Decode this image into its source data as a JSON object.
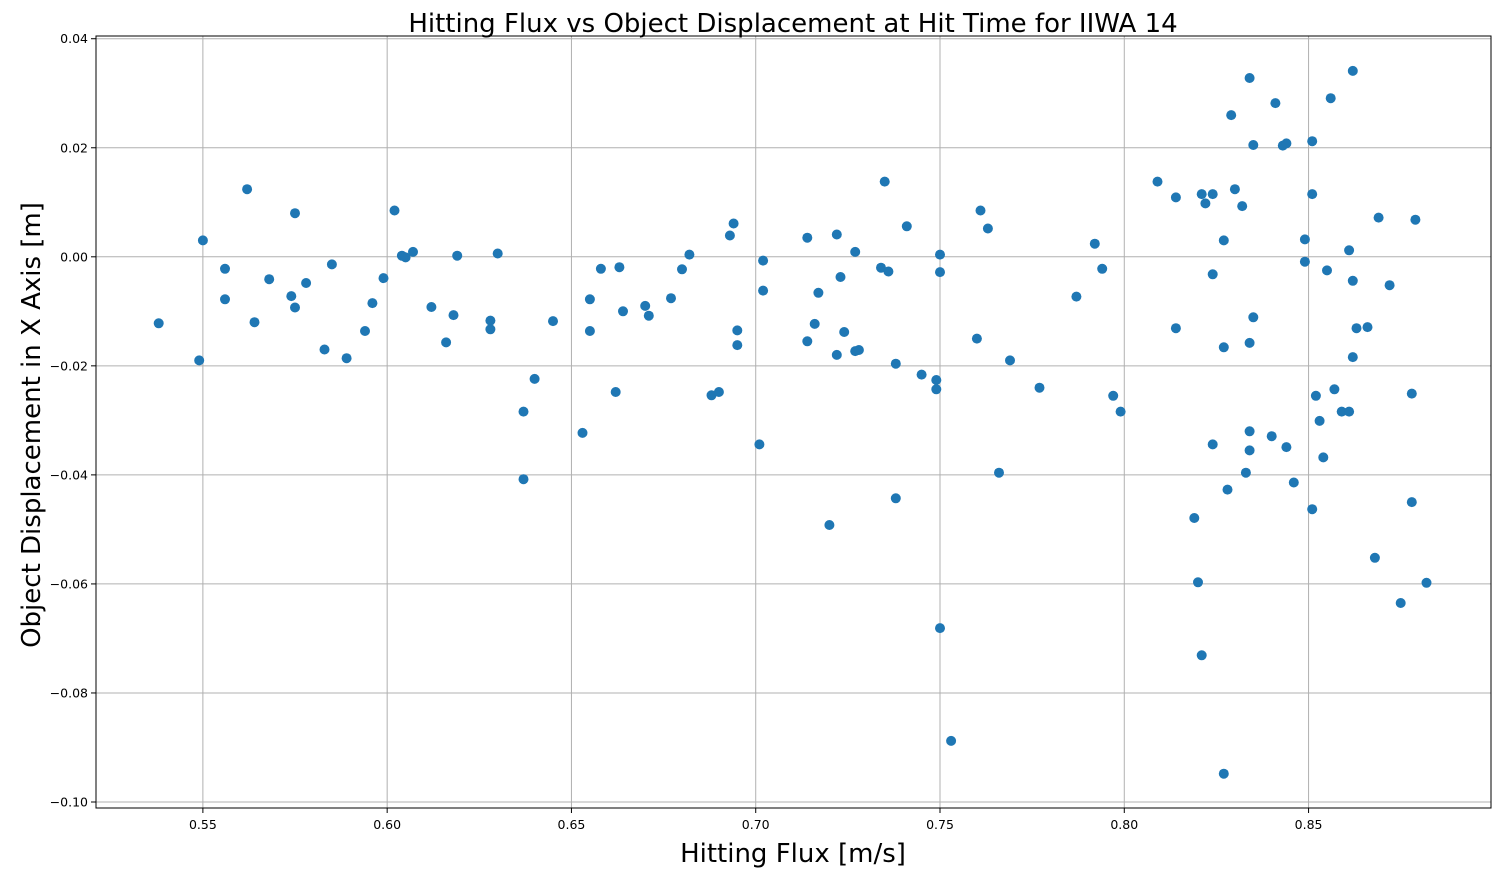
{
  "chart_data": {
    "type": "scatter",
    "title": "Hitting Flux vs Object Displacement at Hit Time for IIWA 14",
    "xlabel": "Hitting Flux [m/s]",
    "ylabel": "Object Displacement in X Axis [m]",
    "xlim": [
      0.521,
      0.8995
    ],
    "ylim": [
      -0.1011,
      0.0405
    ],
    "xticks": [
      0.55,
      0.6,
      0.65,
      0.7,
      0.75,
      0.8,
      0.85
    ],
    "xtick_labels": [
      "0.55",
      "0.60",
      "0.65",
      "0.70",
      "0.75",
      "0.80",
      "0.85"
    ],
    "yticks": [
      -0.1,
      -0.08,
      -0.06,
      -0.04,
      -0.02,
      0.0,
      0.02,
      0.04
    ],
    "ytick_labels": [
      "−0.10",
      "−0.08",
      "−0.06",
      "−0.04",
      "−0.02",
      "0.00",
      "0.02",
      "0.04"
    ],
    "grid": true,
    "marker_color": "#1f77b4",
    "points": [
      [
        0.538,
        -0.0122
      ],
      [
        0.55,
        0.003
      ],
      [
        0.549,
        -0.019
      ],
      [
        0.556,
        -0.0022
      ],
      [
        0.556,
        -0.0078
      ],
      [
        0.562,
        0.0124
      ],
      [
        0.564,
        -0.012
      ],
      [
        0.568,
        -0.0041
      ],
      [
        0.574,
        -0.0072
      ],
      [
        0.575,
        0.008
      ],
      [
        0.575,
        -0.0093
      ],
      [
        0.578,
        -0.0048
      ],
      [
        0.583,
        -0.017
      ],
      [
        0.585,
        -0.0014
      ],
      [
        0.589,
        -0.0186
      ],
      [
        0.594,
        -0.0136
      ],
      [
        0.596,
        -0.0085
      ],
      [
        0.599,
        -0.0039
      ],
      [
        0.602,
        0.0085
      ],
      [
        0.604,
        0.0002
      ],
      [
        0.605,
        -0.0001
      ],
      [
        0.607,
        0.0009
      ],
      [
        0.612,
        -0.0092
      ],
      [
        0.616,
        -0.0157
      ],
      [
        0.618,
        -0.0107
      ],
      [
        0.619,
        0.0002
      ],
      [
        0.628,
        -0.0117
      ],
      [
        0.628,
        -0.0133
      ],
      [
        0.63,
        0.0006
      ],
      [
        0.637,
        -0.0284
      ],
      [
        0.637,
        -0.0408
      ],
      [
        0.64,
        -0.0224
      ],
      [
        0.645,
        -0.0118
      ],
      [
        0.653,
        -0.0323
      ],
      [
        0.655,
        -0.0078
      ],
      [
        0.655,
        -0.0136
      ],
      [
        0.658,
        -0.0022
      ],
      [
        0.662,
        -0.0248
      ],
      [
        0.663,
        -0.0019
      ],
      [
        0.664,
        -0.01
      ],
      [
        0.67,
        -0.009
      ],
      [
        0.671,
        -0.0108
      ],
      [
        0.677,
        -0.0076
      ],
      [
        0.68,
        -0.0023
      ],
      [
        0.682,
        0.0004
      ],
      [
        0.688,
        -0.0254
      ],
      [
        0.69,
        -0.0248
      ],
      [
        0.693,
        0.0039
      ],
      [
        0.694,
        0.0061
      ],
      [
        0.695,
        -0.0135
      ],
      [
        0.695,
        -0.0162
      ],
      [
        0.701,
        -0.0344
      ],
      [
        0.702,
        -0.0007
      ],
      [
        0.702,
        -0.0062
      ],
      [
        0.714,
        0.0035
      ],
      [
        0.714,
        -0.0155
      ],
      [
        0.716,
        -0.0123
      ],
      [
        0.717,
        -0.0066
      ],
      [
        0.72,
        -0.0492
      ],
      [
        0.722,
        0.0041
      ],
      [
        0.722,
        -0.018
      ],
      [
        0.723,
        -0.0037
      ],
      [
        0.724,
        -0.0138
      ],
      [
        0.727,
        0.0009
      ],
      [
        0.727,
        -0.0173
      ],
      [
        0.728,
        -0.0171
      ],
      [
        0.734,
        -0.002
      ],
      [
        0.735,
        0.0138
      ],
      [
        0.736,
        -0.0027
      ],
      [
        0.738,
        -0.0196
      ],
      [
        0.738,
        -0.0443
      ],
      [
        0.741,
        0.0056
      ],
      [
        0.745,
        -0.0216
      ],
      [
        0.749,
        -0.0226
      ],
      [
        0.749,
        -0.0243
      ],
      [
        0.75,
        0.0004
      ],
      [
        0.75,
        -0.0681
      ],
      [
        0.75,
        -0.0028
      ],
      [
        0.753,
        -0.0888
      ],
      [
        0.76,
        -0.015
      ],
      [
        0.761,
        0.0085
      ],
      [
        0.763,
        0.0052
      ],
      [
        0.766,
        -0.0396
      ],
      [
        0.769,
        -0.019
      ],
      [
        0.777,
        -0.024
      ],
      [
        0.787,
        -0.0073
      ],
      [
        0.792,
        0.0024
      ],
      [
        0.794,
        -0.0022
      ],
      [
        0.797,
        -0.0255
      ],
      [
        0.799,
        -0.0284
      ],
      [
        0.809,
        0.0138
      ],
      [
        0.814,
        0.0109
      ],
      [
        0.814,
        -0.0131
      ],
      [
        0.819,
        -0.0479
      ],
      [
        0.82,
        -0.0597
      ],
      [
        0.821,
        0.0115
      ],
      [
        0.821,
        -0.0731
      ],
      [
        0.822,
        0.0098
      ],
      [
        0.824,
        0.0115
      ],
      [
        0.824,
        -0.0032
      ],
      [
        0.824,
        -0.0344
      ],
      [
        0.827,
        -0.0948
      ],
      [
        0.827,
        0.003
      ],
      [
        0.827,
        -0.0166
      ],
      [
        0.828,
        -0.0427
      ],
      [
        0.829,
        0.026
      ],
      [
        0.83,
        0.0124
      ],
      [
        0.832,
        0.0093
      ],
      [
        0.834,
        0.0328
      ],
      [
        0.834,
        -0.0158
      ],
      [
        0.834,
        -0.032
      ],
      [
        0.834,
        -0.0355
      ],
      [
        0.833,
        -0.0396
      ],
      [
        0.835,
        0.0205
      ],
      [
        0.835,
        -0.0111
      ],
      [
        0.84,
        -0.0329
      ],
      [
        0.841,
        0.0282
      ],
      [
        0.843,
        0.0204
      ],
      [
        0.844,
        0.0208
      ],
      [
        0.844,
        -0.0349
      ],
      [
        0.846,
        -0.0414
      ],
      [
        0.849,
        0.0032
      ],
      [
        0.849,
        -0.0009
      ],
      [
        0.851,
        0.0212
      ],
      [
        0.851,
        0.0115
      ],
      [
        0.851,
        -0.0463
      ],
      [
        0.852,
        -0.0255
      ],
      [
        0.853,
        -0.0301
      ],
      [
        0.854,
        -0.0368
      ],
      [
        0.855,
        -0.0025
      ],
      [
        0.856,
        0.0291
      ],
      [
        0.857,
        -0.0243
      ],
      [
        0.859,
        -0.0284
      ],
      [
        0.861,
        -0.0284
      ],
      [
        0.861,
        0.0012
      ],
      [
        0.862,
        -0.0044
      ],
      [
        0.862,
        -0.0184
      ],
      [
        0.862,
        0.0341
      ],
      [
        0.863,
        -0.0131
      ],
      [
        0.866,
        -0.0129
      ],
      [
        0.868,
        -0.0552
      ],
      [
        0.869,
        0.0072
      ],
      [
        0.872,
        -0.0052
      ],
      [
        0.875,
        -0.0635
      ],
      [
        0.878,
        -0.0251
      ],
      [
        0.878,
        -0.045
      ],
      [
        0.879,
        0.0068
      ],
      [
        0.882,
        -0.0598
      ]
    ]
  }
}
